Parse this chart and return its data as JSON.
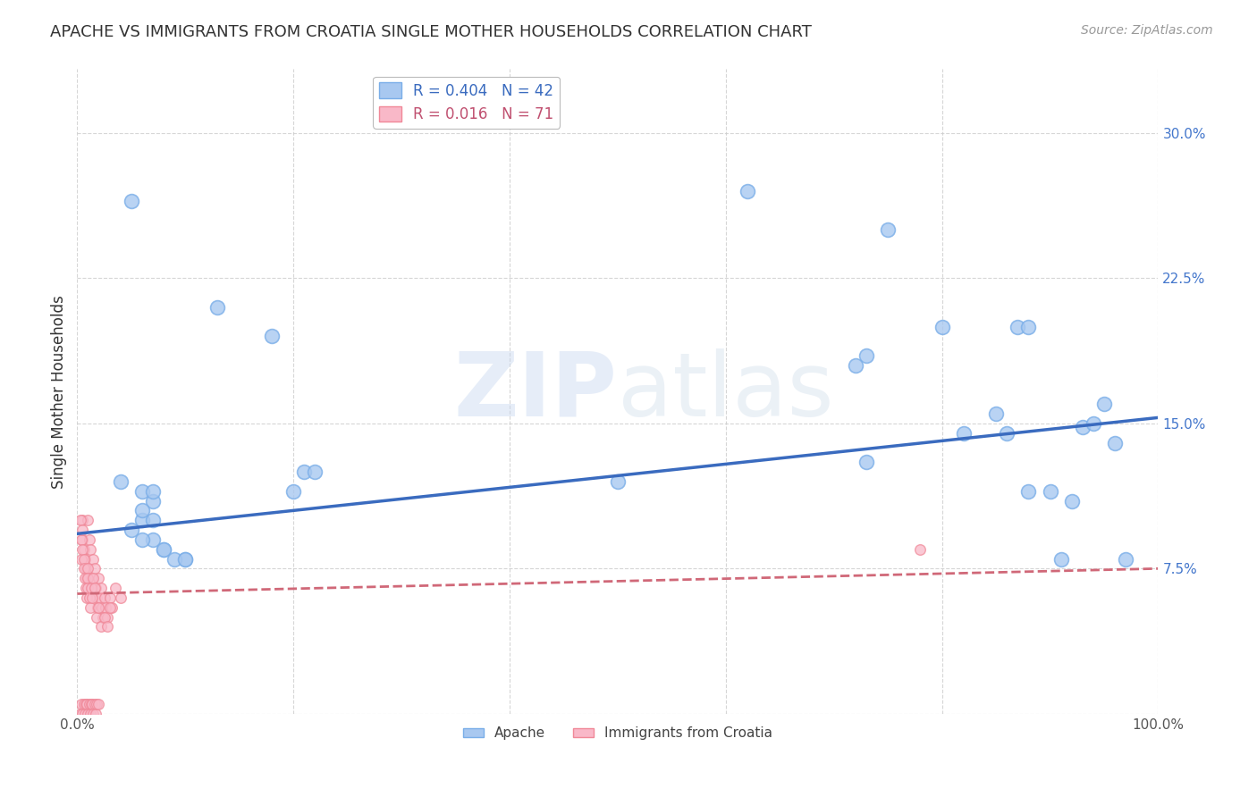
{
  "title": "APACHE VS IMMIGRANTS FROM CROATIA SINGLE MOTHER HOUSEHOLDS CORRELATION CHART",
  "source": "Source: ZipAtlas.com",
  "ylabel": "Single Mother Households",
  "xlim": [
    0,
    1.0
  ],
  "ylim": [
    0.0,
    0.333
  ],
  "xticks": [
    0.0,
    0.2,
    0.4,
    0.6,
    0.8,
    1.0
  ],
  "xticklabels": [
    "0.0%",
    "",
    "",
    "",
    "",
    "100.0%"
  ],
  "yticks": [
    0.0,
    0.075,
    0.15,
    0.225,
    0.3
  ],
  "yticklabels": [
    "",
    "7.5%",
    "15.0%",
    "22.5%",
    "30.0%"
  ],
  "apache_scatter_x": [
    0.05,
    0.13,
    0.18,
    0.21,
    0.04,
    0.06,
    0.07,
    0.06,
    0.05,
    0.07,
    0.08,
    0.1,
    0.22,
    0.2,
    0.73,
    0.8,
    0.82,
    0.86,
    0.87,
    0.88,
    0.9,
    0.92,
    0.93,
    0.94,
    0.95,
    0.96,
    0.5,
    0.72,
    0.75,
    0.62,
    0.85,
    0.88,
    0.91,
    0.97,
    0.73,
    0.07,
    0.06,
    0.07,
    0.06,
    0.08,
    0.09,
    0.1
  ],
  "apache_scatter_y": [
    0.265,
    0.21,
    0.195,
    0.125,
    0.12,
    0.115,
    0.11,
    0.1,
    0.095,
    0.09,
    0.085,
    0.08,
    0.125,
    0.115,
    0.185,
    0.2,
    0.145,
    0.145,
    0.2,
    0.115,
    0.115,
    0.11,
    0.148,
    0.15,
    0.16,
    0.14,
    0.12,
    0.18,
    0.25,
    0.27,
    0.155,
    0.2,
    0.08,
    0.08,
    0.13,
    0.115,
    0.105,
    0.1,
    0.09,
    0.085,
    0.08,
    0.08
  ],
  "croatia_scatter_x": [
    0.005,
    0.005,
    0.006,
    0.007,
    0.008,
    0.009,
    0.01,
    0.011,
    0.012,
    0.013,
    0.014,
    0.015,
    0.016,
    0.017,
    0.018,
    0.019,
    0.02,
    0.021,
    0.022,
    0.023,
    0.024,
    0.025,
    0.026,
    0.028,
    0.03,
    0.032,
    0.035,
    0.04,
    0.003,
    0.004,
    0.004,
    0.005,
    0.005,
    0.006,
    0.006,
    0.007,
    0.008,
    0.009,
    0.01,
    0.01,
    0.01,
    0.011,
    0.012,
    0.013,
    0.014,
    0.015,
    0.016,
    0.018,
    0.02,
    0.022,
    0.025,
    0.028,
    0.03,
    0.003,
    0.004,
    0.005,
    0.006,
    0.007,
    0.008,
    0.009,
    0.01,
    0.011,
    0.012,
    0.013,
    0.014,
    0.015,
    0.016,
    0.017,
    0.018,
    0.02,
    0.78
  ],
  "croatia_scatter_y": [
    0.1,
    0.09,
    0.085,
    0.08,
    0.075,
    0.07,
    0.1,
    0.09,
    0.085,
    0.07,
    0.065,
    0.08,
    0.075,
    0.065,
    0.06,
    0.055,
    0.07,
    0.06,
    0.065,
    0.055,
    0.05,
    0.06,
    0.055,
    0.05,
    0.06,
    0.055,
    0.065,
    0.06,
    0.1,
    0.09,
    0.08,
    0.095,
    0.085,
    0.08,
    0.075,
    0.07,
    0.065,
    0.06,
    0.075,
    0.07,
    0.065,
    0.06,
    0.055,
    0.065,
    0.06,
    0.07,
    0.065,
    0.05,
    0.055,
    0.045,
    0.05,
    0.045,
    0.055,
    0.0,
    0.005,
    0.0,
    0.005,
    0.0,
    0.005,
    0.005,
    0.0,
    0.005,
    0.0,
    0.005,
    0.005,
    0.0,
    0.005,
    0.0,
    0.005,
    0.005,
    0.085
  ],
  "apache_line_x": [
    0.0,
    1.0
  ],
  "apache_line_y": [
    0.093,
    0.153
  ],
  "croatia_line_x": [
    0.0,
    1.0
  ],
  "croatia_line_y": [
    0.062,
    0.075
  ],
  "watermark_zip": "ZIP",
  "watermark_atlas": "atlas",
  "background_color": "#ffffff",
  "plot_bg_color": "#ffffff",
  "grid_color": "#cccccc",
  "apache_color": "#a8c8f0",
  "apache_edge_color": "#7aaee8",
  "croatia_color": "#f9b8c8",
  "croatia_edge_color": "#f08898",
  "apache_line_color": "#3a6bbf",
  "croatia_line_color": "#d06878"
}
